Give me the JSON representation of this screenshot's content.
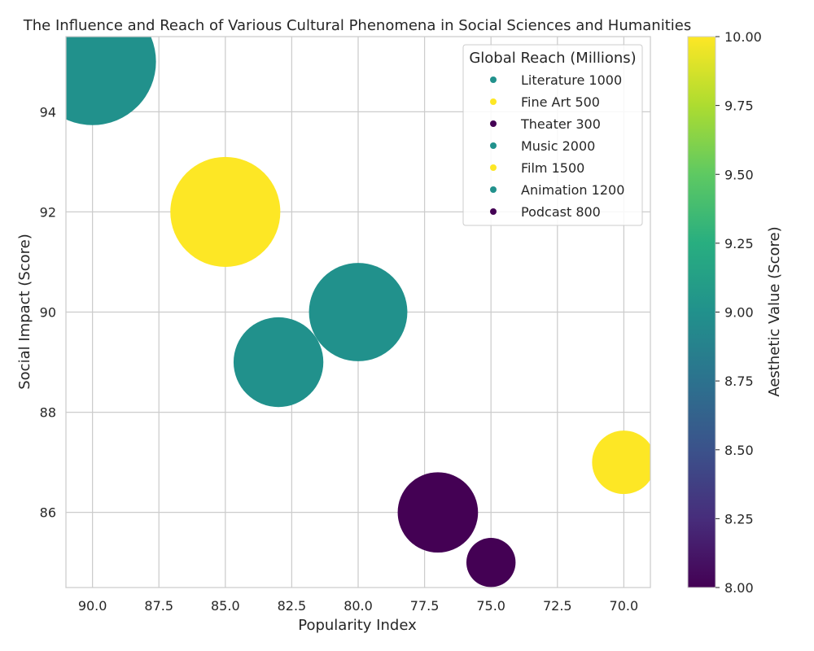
{
  "chart_data": {
    "type": "scatter",
    "title": "The Influence and Reach of Various Cultural Phenomena in Social Sciences and Humanities",
    "xlabel": "Popularity Index",
    "ylabel": "Social Impact (Score)",
    "colorbar_label": "Aesthetic Value (Score)",
    "legend_title": "Global Reach (Millions)",
    "legend_position": "upper right",
    "grid": true,
    "x_axis_inverted": true,
    "xlim": [
      91,
      69
    ],
    "ylim": [
      84.5,
      95.5
    ],
    "x_ticks": [
      90.0,
      87.5,
      85.0,
      82.5,
      80.0,
      77.5,
      75.0,
      72.5,
      70.0
    ],
    "x_tick_labels": [
      "90.0",
      "87.5",
      "85.0",
      "82.5",
      "80.0",
      "77.5",
      "75.0",
      "72.5",
      "70.0"
    ],
    "y_ticks": [
      86,
      88,
      90,
      92,
      94
    ],
    "y_tick_labels": [
      "86",
      "88",
      "90",
      "92",
      "94"
    ],
    "colorbar_range": [
      8.0,
      10.0
    ],
    "colorbar_ticks": [
      8.0,
      8.25,
      8.5,
      8.75,
      9.0,
      9.25,
      9.5,
      9.75,
      10.0
    ],
    "colorbar_tick_labels": [
      "8.00",
      "8.25",
      "8.50",
      "8.75",
      "9.00",
      "9.25",
      "9.50",
      "9.75",
      "10.00"
    ],
    "colormap": "viridis",
    "points": [
      {
        "name": "Literature",
        "reach": 1000,
        "legend_label": "Literature 1000",
        "popularity": 83,
        "impact": 89,
        "aesthetic": 9.0
      },
      {
        "name": "Fine Art",
        "reach": 500,
        "legend_label": "Fine Art 500",
        "popularity": 70,
        "impact": 87,
        "aesthetic": 10.0
      },
      {
        "name": "Theater",
        "reach": 300,
        "legend_label": "Theater 300",
        "popularity": 75,
        "impact": 85,
        "aesthetic": 8.0
      },
      {
        "name": "Music",
        "reach": 2000,
        "legend_label": "Music 2000",
        "popularity": 90,
        "impact": 95,
        "aesthetic": 9.0
      },
      {
        "name": "Film",
        "reach": 1500,
        "legend_label": "Film 1500",
        "popularity": 85,
        "impact": 92,
        "aesthetic": 10.0
      },
      {
        "name": "Animation",
        "reach": 1200,
        "legend_label": "Animation 1200",
        "popularity": 80,
        "impact": 90,
        "aesthetic": 9.0
      },
      {
        "name": "Podcast",
        "reach": 800,
        "legend_label": "Podcast 800",
        "popularity": 77,
        "impact": 86,
        "aesthetic": 8.0
      }
    ]
  }
}
